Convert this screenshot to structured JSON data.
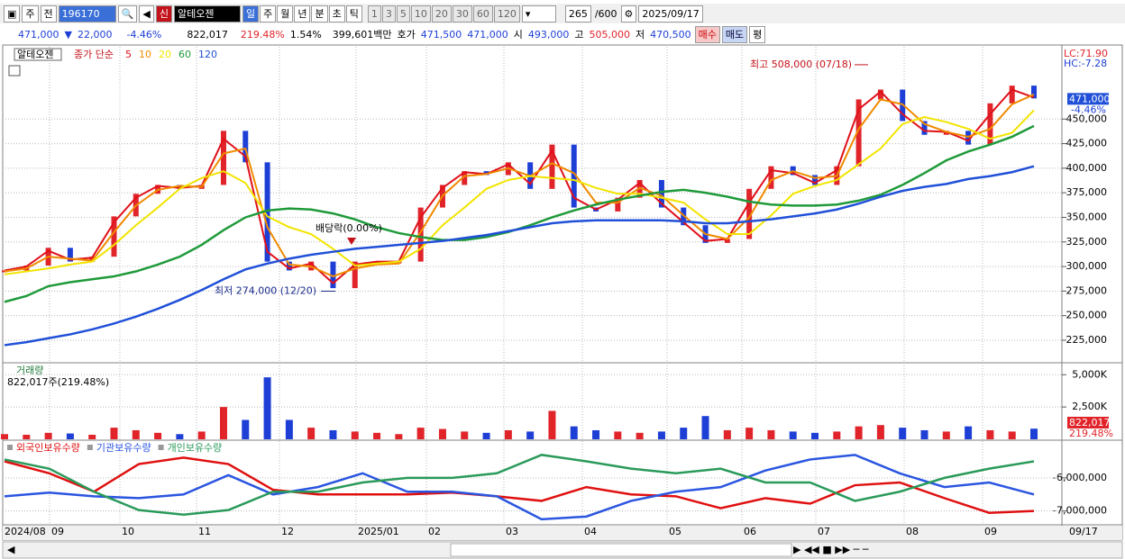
{
  "toolbar": {
    "tab": "주",
    "prev": "전",
    "code": "196170",
    "market": "신",
    "name": "알테오젠",
    "periods": [
      "일",
      "주",
      "월",
      "년",
      "분",
      "초",
      "틱"
    ],
    "intervals": [
      "1",
      "3",
      "5",
      "10",
      "20",
      "30",
      "60",
      "120"
    ],
    "count": "265",
    "count_max": "/600",
    "date": "2025/09/17"
  },
  "quote": {
    "price": "471,000",
    "down_mark": "▼",
    "change": "22,000",
    "rate": "-4.46%",
    "volume": "822,017",
    "vol_rate": "219.48%",
    "turnover": "1.54%",
    "amount": "399,601백만",
    "bid_label": "호가",
    "bid": "471,500",
    "ask": "471,000",
    "open_label": "시",
    "open": "493,000",
    "high_label": "고",
    "high": "505,000",
    "low_label": "저",
    "low": "470,500",
    "buy": "매수",
    "sell": "매도",
    "avg": "평"
  },
  "time_axis": {
    "labels": [
      "2024/08",
      "09",
      "10",
      "11",
      "12",
      "2025/01",
      "02",
      "03",
      "04",
      "05",
      "06",
      "07",
      "08",
      "09",
      "09/17"
    ]
  },
  "chart_data": [
    {
      "type": "line",
      "title": "알테오젠",
      "legend_label": "종가 단순",
      "ylim": [
        203000,
        523500
      ],
      "yticks": [
        {
          "value": 225000,
          "label": "225,000"
        },
        {
          "value": 250000,
          "label": "250,000"
        },
        {
          "value": 275000,
          "label": "275,000"
        },
        {
          "value": 300000,
          "label": "300,000"
        },
        {
          "value": 325000,
          "label": "325,000"
        },
        {
          "value": 350000,
          "label": "350,000"
        },
        {
          "value": 375000,
          "label": "375,000"
        },
        {
          "value": 400000,
          "label": "400,000"
        },
        {
          "value": 425000,
          "label": "425,000"
        },
        {
          "value": 450000,
          "label": "450,000"
        }
      ],
      "grid": true,
      "up_color": "#e0242a",
      "down_color": "#1e3fd6",
      "candles": [
        296000,
        301000,
        319000,
        305000,
        310000,
        351000,
        374000,
        383000,
        379000,
        383000,
        438000,
        406000,
        305000,
        296000,
        305000,
        278000,
        305000,
        305000,
        305000,
        360000,
        383000,
        397000,
        393000,
        406000,
        379000,
        424000,
        360000,
        356000,
        370000,
        388000,
        360000,
        342000,
        324000,
        328000,
        379000,
        402000,
        393000,
        383000,
        402000,
        470000,
        480000,
        448000,
        434000,
        438000,
        424000,
        466000,
        484000,
        471000
      ],
      "series": [
        {
          "name": "5",
          "color": "#e0101a",
          "values": [
            296000,
            300000,
            316000,
            307000,
            309000,
            345000,
            370000,
            382000,
            380000,
            382000,
            430000,
            412000,
            315000,
            298000,
            303000,
            283000,
            302000,
            305000,
            305000,
            350000,
            380000,
            396000,
            394000,
            404000,
            384000,
            418000,
            370000,
            358000,
            368000,
            385000,
            364000,
            345000,
            326000,
            328000,
            365000,
            398000,
            395000,
            385000,
            398000,
            460000,
            478000,
            455000,
            438000,
            437000,
            428000,
            455000,
            480000,
            472000
          ]
        },
        {
          "name": "10",
          "color": "#f08a00",
          "values": [
            295000,
            298000,
            310000,
            308000,
            306000,
            335000,
            362000,
            378000,
            382000,
            381000,
            415000,
            420000,
            340000,
            302000,
            300000,
            290000,
            298000,
            302000,
            303000,
            335000,
            372000,
            392000,
            394000,
            400000,
            392000,
            405000,
            395000,
            365000,
            365000,
            380000,
            372000,
            352000,
            333000,
            328000,
            350000,
            388000,
            397000,
            390000,
            392000,
            440000,
            470000,
            465000,
            445000,
            437000,
            432000,
            440000,
            465000,
            475000
          ]
        },
        {
          "name": "20",
          "color": "#f2e400",
          "values": [
            292000,
            295000,
            298000,
            302000,
            305000,
            322000,
            342000,
            360000,
            379000,
            390000,
            397000,
            385000,
            351000,
            340000,
            333000,
            318000,
            301000,
            303000,
            305000,
            318000,
            342000,
            360000,
            379000,
            388000,
            392000,
            390000,
            388000,
            380000,
            374000,
            374000,
            370000,
            365000,
            348000,
            333000,
            333000,
            352000,
            374000,
            382000,
            388000,
            404000,
            420000,
            445000,
            452000,
            447000,
            440000,
            430000,
            436000,
            459000
          ]
        },
        {
          "name": "60",
          "color": "#1f9a3a",
          "values": [
            264000,
            270000,
            280000,
            284000,
            287000,
            290000,
            295000,
            302000,
            310000,
            322000,
            337000,
            350000,
            357000,
            359000,
            358000,
            354000,
            348000,
            340000,
            334000,
            330000,
            327000,
            327000,
            330000,
            335000,
            342000,
            350000,
            357000,
            363000,
            368000,
            372000,
            376000,
            378000,
            375000,
            371000,
            366000,
            363000,
            362000,
            362000,
            363000,
            367000,
            373000,
            383000,
            395000,
            408000,
            417000,
            424000,
            432000,
            443000
          ]
        },
        {
          "name": "120",
          "color": "#2050d8",
          "values": [
            220000,
            223000,
            227000,
            231000,
            236000,
            242000,
            249000,
            257000,
            266000,
            276000,
            287000,
            297000,
            303000,
            308000,
            312000,
            315000,
            318000,
            320000,
            322000,
            324000,
            326000,
            329000,
            332000,
            336000,
            340000,
            344000,
            346000,
            347000,
            347000,
            347000,
            347000,
            346000,
            344000,
            344000,
            346000,
            348000,
            351000,
            354000,
            358000,
            364000,
            371000,
            377000,
            381000,
            384000,
            389000,
            392000,
            396000,
            402000
          ]
        }
      ],
      "annotations": {
        "high": {
          "text": "최고 508,000 (07/18)",
          "value": 508000
        },
        "low": {
          "text": "최저 274,000 (12/20)",
          "value": 274000
        },
        "dividend": "배당락(0.00%)"
      },
      "last_label": "471,000",
      "last_rate": "-4.46%",
      "lc": "LC:71.90",
      "hc": "HC:-7.28"
    },
    {
      "type": "bar",
      "title": "거래량",
      "info": "822,017주(219.48%)",
      "ylim": [
        0,
        5857000
      ],
      "yticks": [
        {
          "value": 2500000,
          "label": "2,500K"
        },
        {
          "value": 5000000,
          "label": "5,000K"
        }
      ],
      "values": [
        400000,
        350000,
        500000,
        450000,
        350000,
        900000,
        700000,
        500000,
        400000,
        600000,
        2500000,
        1500000,
        4800000,
        1500000,
        900000,
        700000,
        600000,
        500000,
        400000,
        900000,
        800000,
        600000,
        500000,
        700000,
        600000,
        2200000,
        1000000,
        700000,
        600000,
        500000,
        600000,
        900000,
        1800000,
        700000,
        900000,
        700000,
        600000,
        500000,
        600000,
        1000000,
        1100000,
        900000,
        700000,
        600000,
        1000000,
        700000,
        600000,
        822017
      ],
      "last_label": "822,017",
      "last_rate": "219.48%"
    },
    {
      "type": "line",
      "ylim": [
        -7389000,
        -4889000
      ],
      "yticks": [
        {
          "value": -6000000,
          "label": "-6,000,000"
        },
        {
          "value": -7000000,
          "label": "-7,000,000"
        }
      ],
      "series": [
        {
          "name": "외국인보유수량",
          "color": "#e01010",
          "values": [
            -5500000,
            -5861000,
            -6417000,
            -5583000,
            -5389000,
            -5583000,
            -6361000,
            -6500000,
            -6500000,
            -6500000,
            -6444000,
            -6556000,
            -6694000,
            -6278000,
            -6500000,
            -6556000,
            -6917000,
            -6611000,
            -6778000,
            -6222000,
            -6139000,
            -6611000,
            -7056000,
            -7000000
          ]
        },
        {
          "name": "기관보유수량",
          "color": "#2a55e0",
          "values": [
            -6556000,
            -6444000,
            -6556000,
            -6611000,
            -6500000,
            -5917000,
            -6500000,
            -6278000,
            -5861000,
            -6417000,
            -6417000,
            -6556000,
            -7250000,
            -7167000,
            -6694000,
            -6417000,
            -6278000,
            -5778000,
            -5444000,
            -5306000,
            -5861000,
            -6278000,
            -6139000,
            -6500000
          ]
        },
        {
          "name": "개인보유수량",
          "color": "#2a9a5a",
          "values": [
            -5444000,
            -5722000,
            -6417000,
            -6972000,
            -7111000,
            -6972000,
            -6417000,
            -6417000,
            -6139000,
            -6000000,
            -6000000,
            -5861000,
            -5306000,
            -5500000,
            -5722000,
            -5861000,
            -5722000,
            -6139000,
            -6139000,
            -6694000,
            -6417000,
            -6000000,
            -5722000,
            -5500000
          ]
        }
      ]
    }
  ]
}
